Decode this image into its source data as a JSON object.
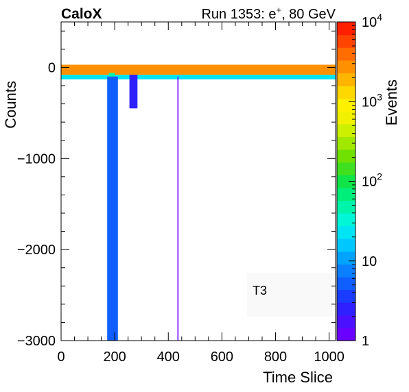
{
  "header": {
    "experiment": "CaloX",
    "run_prefix": "Run 1353: e",
    "run_sup": "+",
    "run_suffix": ", 80 GeV"
  },
  "chart_data": {
    "type": "heatmap",
    "title": "",
    "xlabel": "Time Slice",
    "ylabel": "Counts",
    "zlabel": "Events",
    "xlim": [
      0,
      1024
    ],
    "ylim": [
      -3000,
      500
    ],
    "zlim": [
      1,
      10000
    ],
    "z_scale": "log",
    "x_ticks": [
      0,
      200,
      400,
      600,
      800,
      1000
    ],
    "x_tick_labels": [
      "0",
      "200",
      "400",
      "600",
      "800",
      "1000"
    ],
    "y_ticks": [
      0,
      -1000,
      -2000,
      -3000
    ],
    "y_tick_labels": [
      "0",
      "−1000",
      "−2000",
      "−3000"
    ],
    "z_tick_labels": [
      {
        "value": 1,
        "base": "1",
        "exp": ""
      },
      {
        "value": 10,
        "base": "10",
        "exp": ""
      },
      {
        "value": 100,
        "base": "10",
        "exp": "2"
      },
      {
        "value": 1000,
        "base": "10",
        "exp": "3"
      },
      {
        "value": 10000,
        "base": "10",
        "exp": "4"
      }
    ],
    "annotation": "T3",
    "palette": [
      "#6a00ff",
      "#4a10ff",
      "#2f20ff",
      "#1a3cff",
      "#0f5eff",
      "#0a80ff",
      "#00a4ff",
      "#00c8ff",
      "#00e4f4",
      "#00f6d6",
      "#00f4aa",
      "#00ee7a",
      "#10e448",
      "#40e020",
      "#70e000",
      "#a0e800",
      "#ccf000",
      "#f0f000",
      "#fff000",
      "#ffd800",
      "#ffb400",
      "#ff9000",
      "#ff6c00",
      "#ff4400",
      "#ff2000"
    ],
    "bands": [
      {
        "name": "baseline",
        "x": [
          0,
          1024
        ],
        "y": [
          -80,
          30
        ],
        "z": 3000
      },
      {
        "name": "baseline-tail",
        "x": [
          0,
          1024
        ],
        "y": [
          -130,
          -80
        ],
        "z": 20
      },
      {
        "name": "pulse-core",
        "x": [
          178,
          200
        ],
        "y": [
          -600,
          -60
        ],
        "z": 40
      },
      {
        "name": "pulse-body",
        "x": [
          172,
          212
        ],
        "y": [
          -3000,
          -100
        ],
        "z": 5
      },
      {
        "name": "pulse-secondary",
        "x": [
          255,
          285
        ],
        "y": [
          -450,
          -80
        ],
        "z": 3
      },
      {
        "name": "sparse-spike",
        "x": [
          434,
          438
        ],
        "y": [
          -3000,
          -100
        ],
        "z": 1
      }
    ]
  }
}
